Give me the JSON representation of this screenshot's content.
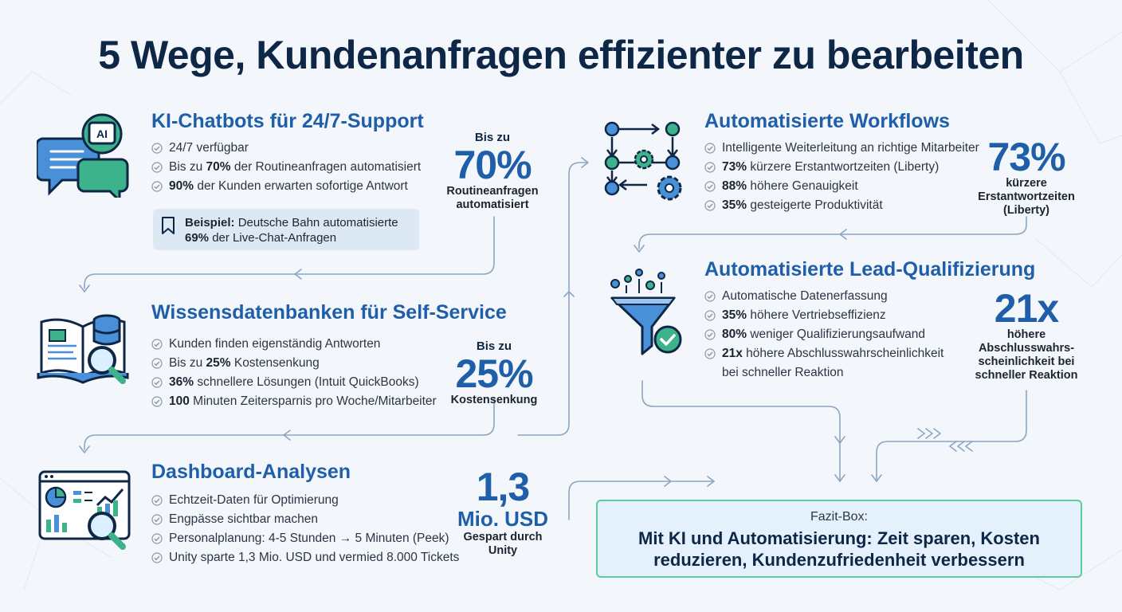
{
  "title": "5 Wege, Kundenanfragen effizienter zu bearbeiten",
  "colors": {
    "primary": "#1f5ea8",
    "dark": "#0e2747",
    "accent_green": "#3cb38a",
    "flow_line": "#8aa6c4"
  },
  "sections": {
    "chatbots": {
      "icon": "chat-bubbles-ai-icon",
      "title": "KI-Chatbots für 24/7-Support",
      "bullets": [
        {
          "bold": "",
          "text": "24/7 verfügbar"
        },
        {
          "pre": "Bis zu ",
          "bold": "70%",
          "text": " der Routineanfragen automatisiert"
        },
        {
          "bold": "90%",
          "text": " der Kunden erwarten sofortige Antwort"
        }
      ],
      "example": {
        "label": "Beispiel:",
        "text": " Deutsche Bahn automatisierte",
        "bold2": "69%",
        "text2": " der Live-Chat-Anfragen"
      },
      "stat": {
        "pre": "Bis zu",
        "value": "70%",
        "sub": "Routineanfragen automatisiert"
      }
    },
    "knowledge": {
      "icon": "knowledge-base-icon",
      "title": "Wissensdatenbanken für Self-Service",
      "bullets": [
        {
          "bold": "",
          "text": "Kunden finden eigenständig Antworten"
        },
        {
          "pre": "Bis zu ",
          "bold": "25%",
          "text": " Kostensenkung"
        },
        {
          "bold": "36%",
          "text": " schnellere Lösungen (Intuit QuickBooks)"
        },
        {
          "bold": "100",
          "text": " Minuten Zeitersparnis pro Woche/Mitarbeiter"
        }
      ],
      "stat": {
        "pre": "Bis zu",
        "value": "25%",
        "sub": "Kostensenkung"
      }
    },
    "dashboard": {
      "icon": "dashboard-analytics-icon",
      "title": "Dashboard-Analysen",
      "bullets": [
        {
          "bold": "",
          "text": "Echtzeit-Daten für Optimierung"
        },
        {
          "bold": "",
          "text": "Engpässe sichtbar machen"
        },
        {
          "bold": "",
          "text": "Personalplanung: 4-5 Stunden → 5 Minuten (Peek)"
        },
        {
          "bold": "",
          "text": "Unity sparte 1,3 Mio. USD und vermied 8.000 Tickets"
        }
      ],
      "stat": {
        "value": "1,3",
        "value2": "Mio. USD",
        "sub": "Gespart durch Unity"
      }
    },
    "workflows": {
      "icon": "workflow-gears-icon",
      "title": "Automatisierte Workflows",
      "bullets": [
        {
          "bold": "",
          "text": "Intelligente Weiterleitung an richtige Mitarbeiter"
        },
        {
          "bold": "73%",
          "text": " kürzere Erstantwortzeiten (Liberty)"
        },
        {
          "bold": "88%",
          "text": " höhere Genauigkeit"
        },
        {
          "bold": "35%",
          "text": " gesteigerte Produktivität"
        }
      ],
      "stat": {
        "value": "73%",
        "sub": "kürzere Erstantwortzeiten (Liberty)"
      }
    },
    "leads": {
      "icon": "funnel-check-icon",
      "title": "Automatisierte Lead-Qualifizierung",
      "bullets": [
        {
          "bold": "",
          "text": "Automatische Datenerfassung"
        },
        {
          "bold": "35%",
          "text": " höhere Vertriebseffizienz"
        },
        {
          "bold": "80%",
          "text": " weniger Qualifizierungsaufwand"
        },
        {
          "bold": "21x",
          "text": " höhere Abschlusswahrscheinlichkeit"
        },
        {
          "bold": "",
          "text": "bei schneller Reaktion",
          "nocheck": true
        }
      ],
      "stat": {
        "value": "21x",
        "sub": "höhere Abschlusswahrs-scheinlichkeit bei schneller Reaktion"
      }
    }
  },
  "fazit": {
    "label": "Fazit-Box:",
    "message": "Mit KI und Automatisierung: Zeit sparen, Kosten reduzieren, Kundenzufriedenheit verbessern"
  }
}
